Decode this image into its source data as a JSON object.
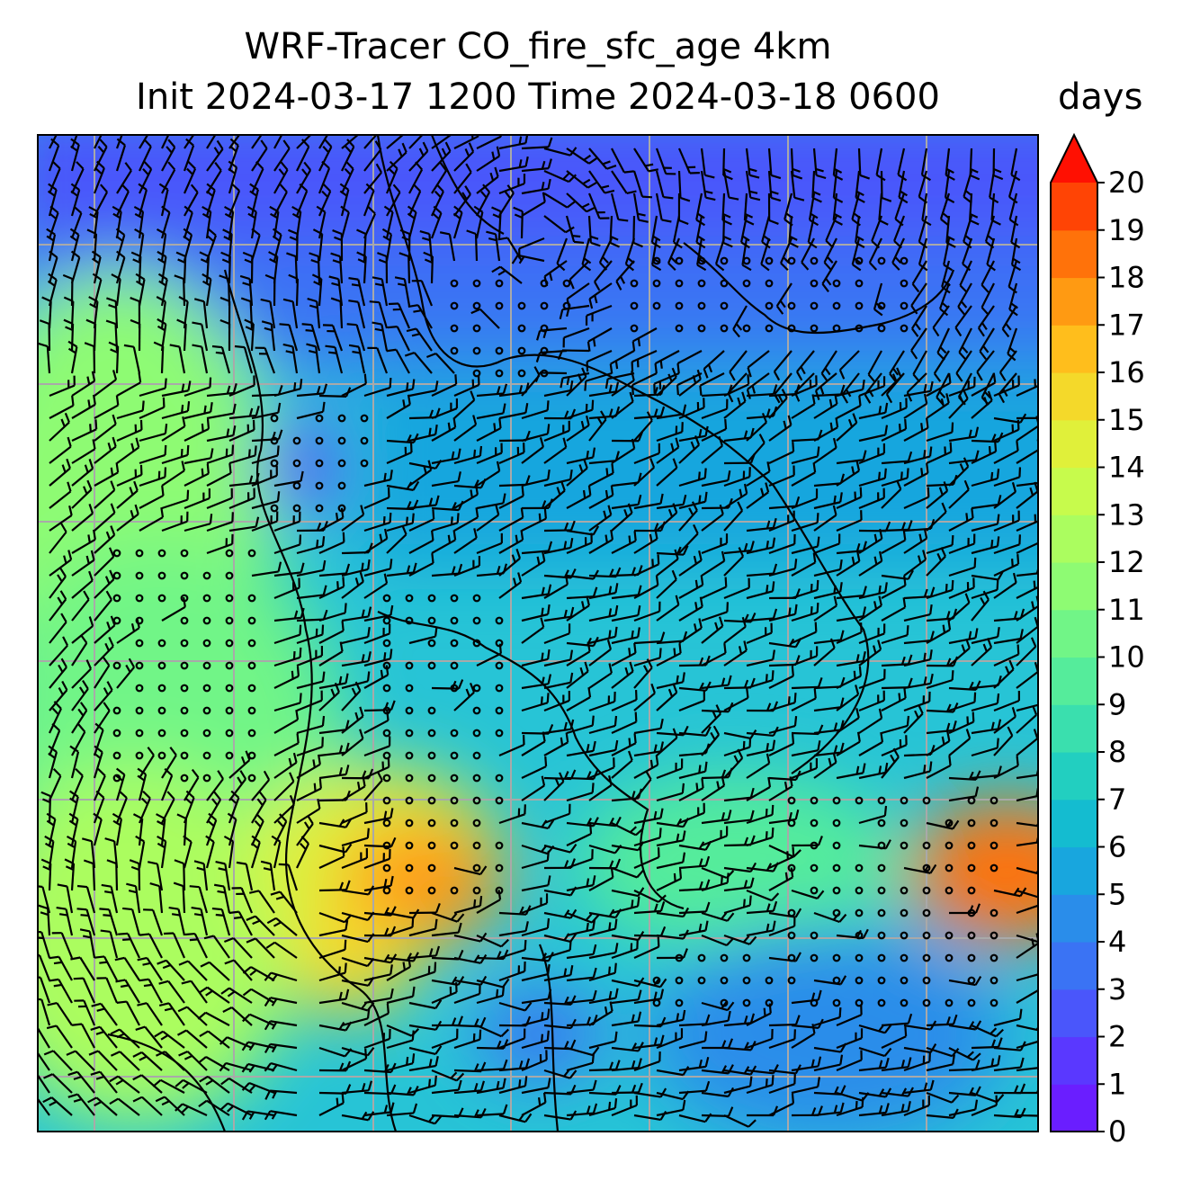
{
  "title": {
    "line1": "WRF-Tracer CO_fire_sfc_age 4km",
    "line2": "Init 2024-03-17 1200 Time 2024-03-18 0600"
  },
  "colorbar": {
    "units": "days",
    "min": 0,
    "max": 20,
    "ticks": [
      "0",
      "1",
      "2",
      "3",
      "4",
      "5",
      "6",
      "7",
      "8",
      "9",
      "10",
      "11",
      "12",
      "13",
      "14",
      "15",
      "16",
      "17",
      "18",
      "19",
      "20"
    ],
    "colors": [
      "#6a1eff",
      "#5a38ff",
      "#4a56fb",
      "#3a73f4",
      "#2a8dea",
      "#18a6de",
      "#14bcd0",
      "#22cfc0",
      "#3adfae",
      "#55ec9b",
      "#71f587",
      "#8efb73",
      "#abfd5f",
      "#c7fb4c",
      "#e0f03a",
      "#f4d92a",
      "#ffbe1c",
      "#ff9a12",
      "#ff720a",
      "#ff4405",
      "#ff1002"
    ],
    "extend": "max"
  },
  "map": {
    "gridlines": true,
    "coastlines": true,
    "wind_barbs": true,
    "field_regions": [
      {
        "label": "north",
        "value": 2.5
      },
      {
        "label": "central",
        "value": 6.0
      },
      {
        "label": "west",
        "value": 10.0
      },
      {
        "label": "south-central-hotspot",
        "value": 16.5
      },
      {
        "label": "east-hotspot",
        "value": 17.5
      },
      {
        "label": "southwest",
        "value": 12.5
      },
      {
        "label": "southeast",
        "value": 6.5
      }
    ]
  }
}
